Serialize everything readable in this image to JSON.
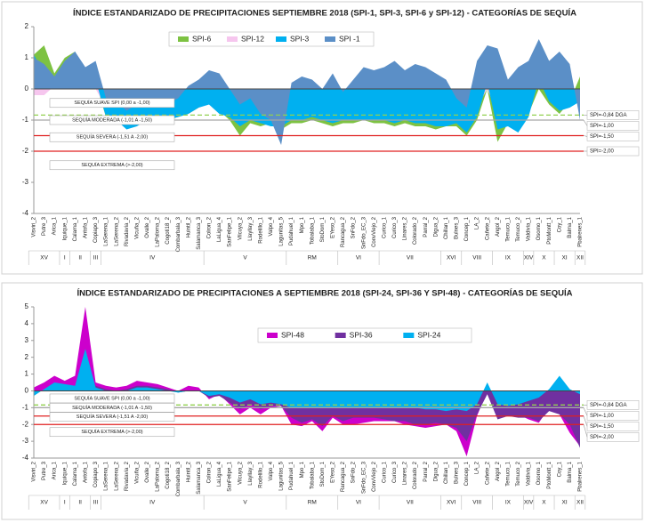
{
  "chart_data": [
    {
      "type": "area",
      "title": "ÍNDICE ESTANDARIZADO DE PRECIPITACIONES SEPTIEMBRE 2018 (SPI-1, SPI-3, SPI-6 y SPI-12)  - CATEGORÍAS  DE SEQUÍA",
      "categories": [
        "Visviri_2",
        "Putre_3",
        "Arica_1",
        "Iquique_1",
        "Calama_1",
        "Antofa_1",
        "Copiapo_3",
        "LaSerena_1",
        "LaSerena_2",
        "Rivadavia_2",
        "Vicuña_2",
        "Ovalle_2",
        "LaPaloma_2",
        "Cogoti18_2",
        "Combarbala_3",
        "Huintil_2",
        "Salamanca_3",
        "Colron_2",
        "LaLigua_4",
        "SanFelipe_1",
        "Vilcuya_2",
        "Llayllay_3",
        "Rodelillo_1",
        "Valpo_4",
        "Lagunitas_5",
        "Pudahuel_1",
        "Mpo_1",
        "Tobalaba_1",
        "StoDom_1",
        "EYeso_2",
        "Rancagua_2",
        "SnFdo_2",
        "SnFdo_EC_3",
        "ConvViejo_2",
        "Curico_1",
        "Curico_3",
        "Linares_2",
        "Colorado_2",
        "Parral_2",
        "Digua_2",
        "Chillan_1",
        "Bulnes_3",
        "Concep_1",
        "LA_2",
        "Cañete_2",
        "Angol_2",
        "Temuco_1",
        "Temuco_2",
        "Valdivia_1",
        "Osorno_1",
        "PtoMontt_1",
        "Coy_1",
        "Balma_1",
        "Pbalrenes_1"
      ],
      "groups": [
        {
          "label": "XV",
          "count": 3
        },
        {
          "label": "I",
          "count": 1
        },
        {
          "label": "II",
          "count": 2
        },
        {
          "label": "III",
          "count": 1
        },
        {
          "label": "IV",
          "count": 10
        },
        {
          "label": "V",
          "count": 8
        },
        {
          "label": "RM",
          "count": 5
        },
        {
          "label": "VI",
          "count": 4
        },
        {
          "label": "VII",
          "count": 6
        },
        {
          "label": "XVI",
          "count": 2
        },
        {
          "label": "VIII",
          "count": 3
        },
        {
          "label": "IX",
          "count": 3
        },
        {
          "label": "XIV",
          "count": 1
        },
        {
          "label": "X",
          "count": 2
        },
        {
          "label": "XI",
          "count": 2
        },
        {
          "label": "XII",
          "count": 1
        }
      ],
      "series": [
        {
          "name": "SPI-6",
          "color": "#7dc242",
          "values": [
            1.1,
            1.4,
            0.5,
            1.0,
            1.2,
            0.5,
            0.2,
            -0.9,
            -1.0,
            -1.2,
            -1.1,
            -1.0,
            -1.0,
            -1.0,
            -0.9,
            -0.8,
            -0.6,
            -0.4,
            -0.7,
            -1.0,
            -1.5,
            -1.1,
            -1.2,
            -1.1,
            -1.3,
            -1.1,
            -1.1,
            -1.0,
            -1.1,
            -1.2,
            -1.1,
            -1.1,
            -1.0,
            -1.1,
            -1.1,
            -1.2,
            -1.1,
            -1.2,
            -1.2,
            -1.3,
            -1.2,
            -1.2,
            -1.5,
            -1.0,
            0.0,
            -1.7,
            -1.1,
            -1.2,
            -0.8,
            0.0,
            -0.5,
            -0.8,
            -0.4,
            0.4
          ]
        },
        {
          "name": "SPI-12",
          "color": "#f6c6ee",
          "values": [
            -0.2,
            -0.2,
            0.1,
            0.1,
            0.2,
            0.1,
            0.0,
            -0.6,
            -0.8,
            -0.9,
            -0.9,
            -0.9,
            -0.8,
            -0.9,
            -0.8,
            -0.7,
            -0.6,
            -0.5,
            -0.6,
            -0.7,
            -0.8,
            -0.7,
            -0.6,
            -0.8,
            -0.9,
            -0.8,
            -0.8,
            -0.8,
            -0.7,
            -0.8,
            -0.8,
            -0.7,
            -0.8,
            -0.8,
            -0.8,
            -0.8,
            -0.8,
            -0.8,
            -0.8,
            -0.9,
            -1.0,
            -1.1,
            -1.2,
            -0.6,
            0.0,
            -0.8,
            -0.8,
            -1.0,
            -0.3,
            0.2,
            -0.2,
            -0.3,
            -0.5,
            -0.1
          ]
        },
        {
          "name": "SPI-3",
          "color": "#00b0f0",
          "values": [
            1.1,
            0.5,
            0.3,
            0.8,
            1.2,
            0.6,
            0.3,
            -0.9,
            -1.0,
            -1.3,
            -1.2,
            -1.0,
            -1.0,
            -1.0,
            -0.9,
            -0.8,
            -0.6,
            -0.5,
            -0.8,
            -0.9,
            -1.2,
            -1.0,
            -1.1,
            -1.2,
            -1.2,
            -1.0,
            -1.0,
            -0.9,
            -1.0,
            -1.1,
            -1.0,
            -1.0,
            -1.0,
            -1.0,
            -1.0,
            -1.1,
            -1.0,
            -1.1,
            -1.1,
            -1.2,
            -1.2,
            -1.1,
            -1.4,
            -0.9,
            0.2,
            -1.3,
            -1.2,
            -1.4,
            -0.9,
            0.3,
            -0.4,
            -0.7,
            -0.6,
            -0.4
          ]
        },
        {
          "name": "SPI -1",
          "color": "#5b8fc7",
          "values": [
            1.0,
            0.8,
            0.4,
            0.9,
            1.2,
            0.7,
            0.9,
            -0.3,
            -0.4,
            -0.7,
            -0.5,
            -0.4,
            -0.6,
            -0.5,
            -0.3,
            0.1,
            0.3,
            0.6,
            0.5,
            0.0,
            -0.5,
            -0.3,
            -0.8,
            -1.0,
            -1.8,
            0.2,
            0.4,
            0.3,
            0.0,
            0.5,
            -0.1,
            0.3,
            0.7,
            0.6,
            0.7,
            0.9,
            0.6,
            0.8,
            0.7,
            0.5,
            0.3,
            -0.3,
            -0.6,
            0.9,
            1.4,
            1.3,
            0.3,
            0.7,
            0.9,
            1.6,
            0.9,
            1.2,
            0.8,
            -1.0
          ]
        }
      ],
      "ylim": [
        -4,
        2
      ],
      "yticks": [
        -4,
        -3,
        -2,
        -1,
        0,
        1,
        2
      ],
      "reference_lines": [
        {
          "value": -0.84,
          "label": "SPI=-0,84 DGA",
          "color": "#92d050",
          "dashed": true
        },
        {
          "value": -1,
          "label": "SPI=-1,00",
          "color": "#a6a6a6",
          "dashed": false
        },
        {
          "value": -1.5,
          "label": "SPI=-1,50",
          "color": "#e02020",
          "dashed": false
        },
        {
          "value": -2,
          "label": "SPI=-2,00",
          "color": "#e02020",
          "dashed": false
        }
      ],
      "category_boxes": [
        "SEQUÍA SUAVE SPI (0,00 a -1,00)",
        "SEQUÍA MODERADA (-1,01 A -1,50)",
        "SEQUÍA SEVERA (-1,51 A -2,00)",
        "SEQUÍA EXTREMA (>-2,00)"
      ]
    },
    {
      "type": "area",
      "title": "ÍNDICE ESTANDARIZADO DE PRECIPITACIONES A SEPTIEMBRE 2018 (SPI-24, SPI-36 Y SPI-48)  - CATEGORÍAS  DE SEQUÍA",
      "categories": [
        "Visviri_2",
        "Putre_3",
        "Arica_1",
        "Iquique_1",
        "Calama_1",
        "Antofa_1",
        "Copiapo_3",
        "LaSerena_1",
        "LaSerena_2",
        "Rivadavia_2",
        "Vicuña_2",
        "Ovalle_2",
        "LaPaloma_2",
        "Cogoti18_2",
        "Combarbala_3",
        "Huintil_2",
        "Salamanca_3",
        "Colron_2",
        "LaLigua_4",
        "SanFelipe_1",
        "Vilcuya_2",
        "Llayllay_3",
        "Rodelillo_1",
        "Valpo_4",
        "Lagunitas_5",
        "Pudahuel_1",
        "Mpo_1",
        "Tobalaba_1",
        "StoDom_1",
        "EYeso_2",
        "Rancagua_2",
        "SnFdo_2",
        "SnFdo_EC_3",
        "ConvViejo_2",
        "Curico_1",
        "Curico_3",
        "Linares_2",
        "Colorado_2",
        "Parral_2",
        "Digua_2",
        "Chillan_1",
        "Bulnes_3",
        "Concep_1",
        "LA_2",
        "Cañete_2",
        "Angol_2",
        "Temuco_1",
        "Temuco_2",
        "Valdivia_1",
        "Osorno_1",
        "PtoMontt_1",
        "Coy_1",
        "Balma_1",
        "Pbalrenes_1"
      ],
      "groups": [
        {
          "label": "XV",
          "count": 3
        },
        {
          "label": "I",
          "count": 1
        },
        {
          "label": "II",
          "count": 2
        },
        {
          "label": "III",
          "count": 1
        },
        {
          "label": "IV",
          "count": 10
        },
        {
          "label": "V",
          "count": 8
        },
        {
          "label": "RM",
          "count": 5
        },
        {
          "label": "VI",
          "count": 4
        },
        {
          "label": "VII",
          "count": 6
        },
        {
          "label": "XVI",
          "count": 2
        },
        {
          "label": "VIII",
          "count": 3
        },
        {
          "label": "IX",
          "count": 3
        },
        {
          "label": "XIV",
          "count": 1
        },
        {
          "label": "X",
          "count": 2
        },
        {
          "label": "XI",
          "count": 2
        },
        {
          "label": "XII",
          "count": 1
        }
      ],
      "series": [
        {
          "name": "SPI-48",
          "color": "#cc00cc",
          "values": [
            0.2,
            0.5,
            0.9,
            0.6,
            0.9,
            5.0,
            0.5,
            0.3,
            0.2,
            0.3,
            0.6,
            0.5,
            0.4,
            0.2,
            0.0,
            0.3,
            0.2,
            -0.5,
            -0.2,
            -0.8,
            -1.4,
            -1.0,
            -1.4,
            -1.0,
            -0.9,
            -2.0,
            -2.1,
            -1.8,
            -2.4,
            -1.6,
            -2.0,
            -2.0,
            -1.9,
            -1.8,
            -1.8,
            -1.8,
            -2.0,
            -2.1,
            -2.2,
            -2.1,
            -2.0,
            -2.4,
            -3.9,
            -1.5,
            0.0,
            -1.6,
            -1.3,
            -1.4,
            -1.7,
            -1.9,
            -1.0,
            -1.4,
            -2.5,
            -3.3
          ]
        },
        {
          "name": "SPI-36",
          "color": "#7030a0",
          "values": [
            0.0,
            0.0,
            0.3,
            0.2,
            0.2,
            1.3,
            0.3,
            0.1,
            0.0,
            0.1,
            0.3,
            0.3,
            0.2,
            0.1,
            -0.1,
            0.0,
            0.0,
            -0.4,
            -0.3,
            -0.7,
            -1.1,
            -0.8,
            -1.1,
            -0.9,
            -0.9,
            -1.6,
            -1.9,
            -1.7,
            -2.1,
            -1.5,
            -1.8,
            -1.6,
            -1.6,
            -1.6,
            -1.7,
            -1.8,
            -1.8,
            -2.0,
            -2.0,
            -1.9,
            -2.0,
            -2.2,
            -3.0,
            -1.4,
            -0.2,
            -1.7,
            -1.5,
            -1.6,
            -1.6,
            -1.8,
            -1.2,
            -1.4,
            -2.0,
            -3.4
          ]
        },
        {
          "name": "SPI-24",
          "color": "#00b0f0",
          "values": [
            -0.3,
            0.1,
            0.5,
            0.4,
            0.3,
            2.5,
            0.2,
            0.0,
            0.0,
            0.0,
            0.2,
            0.2,
            0.1,
            0.0,
            -0.1,
            0.0,
            0.0,
            -0.3,
            -0.2,
            -0.4,
            -0.7,
            -0.5,
            -0.8,
            -0.7,
            -0.8,
            -1.0,
            -1.0,
            -1.0,
            -1.0,
            -1.0,
            -1.0,
            -1.0,
            -1.0,
            -1.0,
            -1.0,
            -1.0,
            -1.0,
            -1.0,
            -1.1,
            -1.1,
            -1.2,
            -1.1,
            -1.2,
            -0.8,
            0.5,
            -0.8,
            -0.9,
            -0.8,
            -0.6,
            -0.4,
            0.1,
            0.9,
            0.1,
            -0.2
          ]
        }
      ],
      "ylim": [
        -4,
        5
      ],
      "yticks": [
        -4,
        -3,
        -2,
        -1,
        0,
        1,
        2,
        3,
        4,
        5
      ],
      "reference_lines": [
        {
          "value": -0.84,
          "label": "SPI=-0,84 DGA",
          "color": "#92d050",
          "dashed": true
        },
        {
          "value": -1,
          "label": "SPI=-1,00",
          "color": "#a6a6a6",
          "dashed": false
        },
        {
          "value": -1.5,
          "label": "SPI=-1,50",
          "color": "#e02020",
          "dashed": false
        },
        {
          "value": -2,
          "label": "SPI=-2,00",
          "color": "#e02020",
          "dashed": false
        }
      ],
      "category_boxes": [
        "SEQUÍA SUAVE SPI (0,00 a -1,00)",
        "SEQUÍA MODERADA (-1,01 A -1,50)",
        "SEQUÍA SEVERA (-1,51 A -2,00)",
        "SEQUÍA EXTREMA (>-2,00)"
      ]
    }
  ]
}
